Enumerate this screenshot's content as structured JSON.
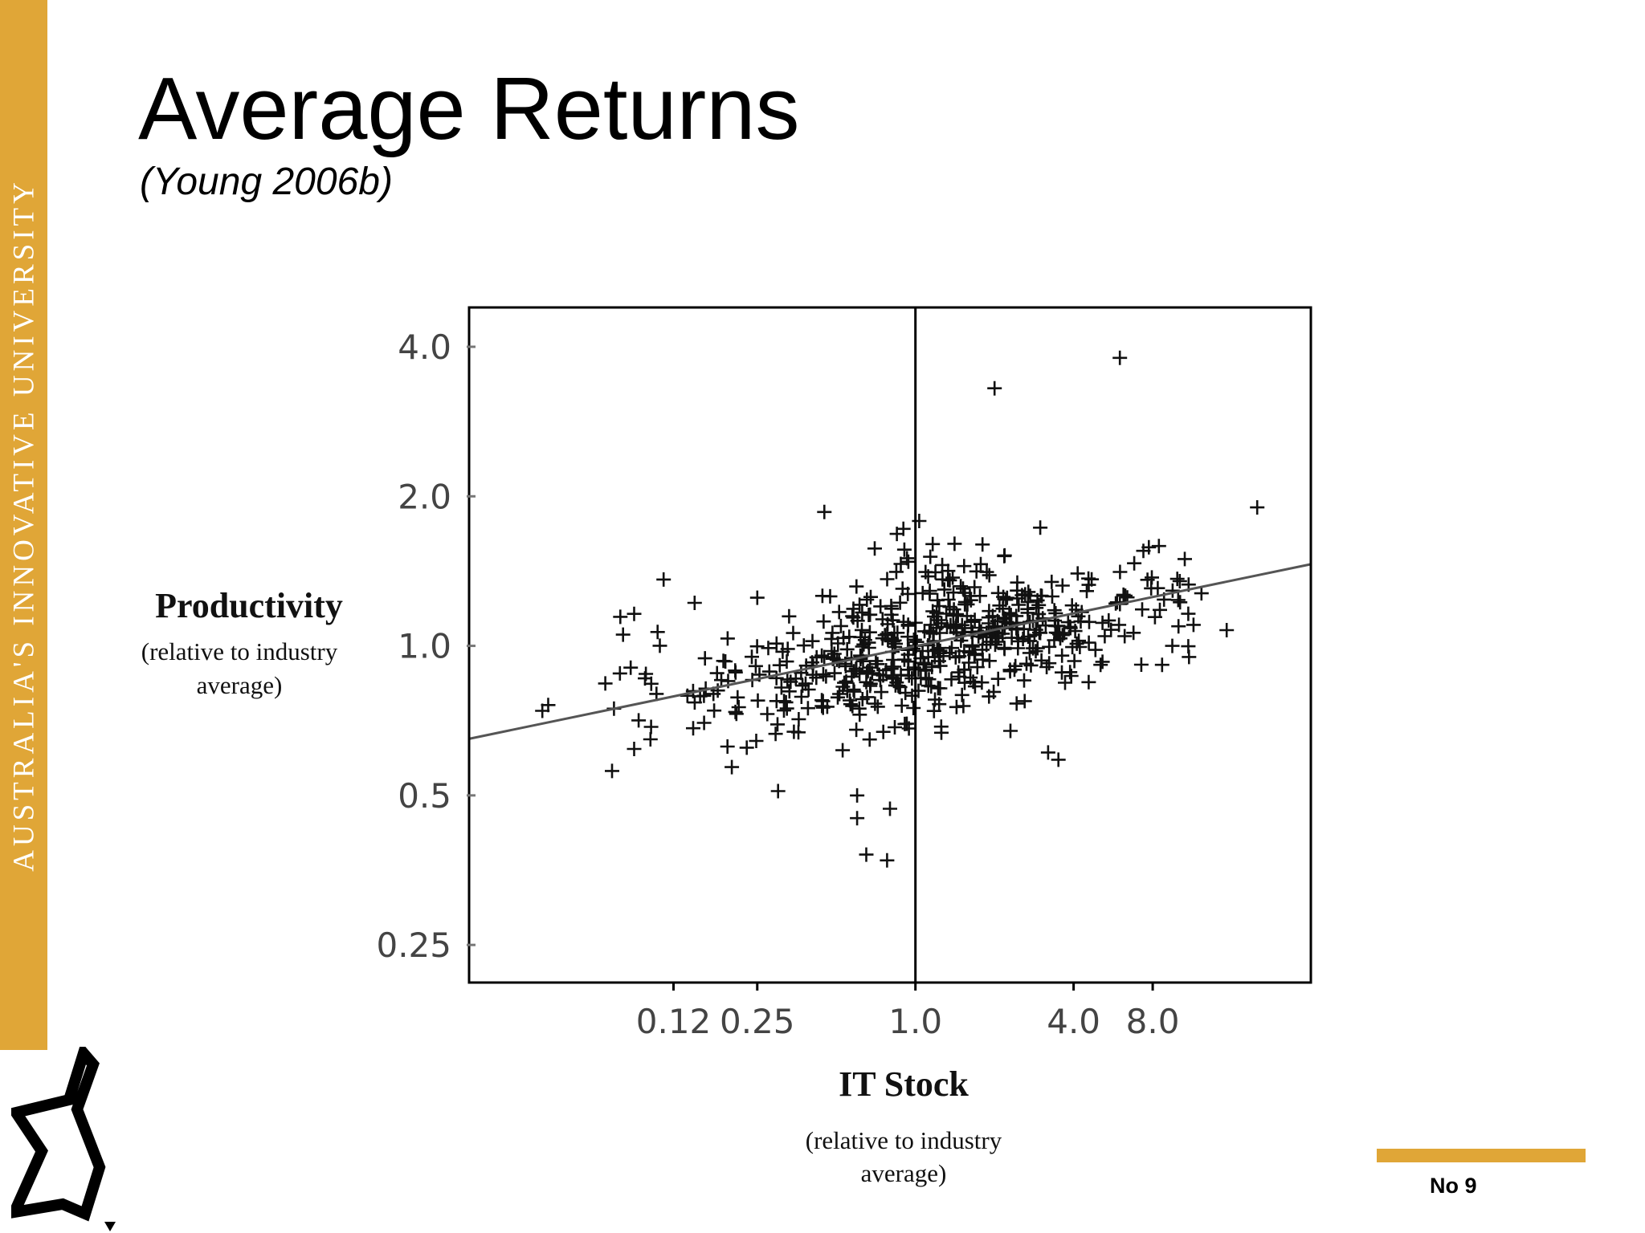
{
  "slide": {
    "title": "Average Returns",
    "subtitle": "(Young 2006b)",
    "side_text": "AUSTRALIA'S INNOVATIVE UNIVERSITY",
    "slide_number": "No 9",
    "logo_icon": "uts-star-logo-icon"
  },
  "colors": {
    "accent": "#E0A637",
    "ink": "#000000",
    "background": "#FFFFFF"
  },
  "chart_data": {
    "type": "scatter",
    "x_scale": "log2",
    "y_scale": "log2",
    "xlim": [
      0.02,
      32
    ],
    "ylim": [
      0.21,
      4.8
    ],
    "xticks": [
      0.12,
      0.25,
      1.0,
      4.0,
      8.0
    ],
    "xtick_labels": [
      "0.12",
      "0.25",
      "1.0",
      "4.0",
      "8.0"
    ],
    "yticks": [
      0.25,
      0.5,
      1.0,
      2.0,
      4.0
    ],
    "ytick_labels": [
      "0.25",
      "0.5",
      "1.0",
      "2.0",
      "4.0"
    ],
    "xlabel": "IT Stock",
    "xlabel_sub": [
      "(relative to industry",
      "average)"
    ],
    "ylabel": "Productivity",
    "ylabel_sub": [
      "(relative to industry",
      "average)"
    ],
    "reference_line_x": 1.0,
    "fit_line": {
      "x": [
        0.02,
        32
      ],
      "y": [
        0.65,
        1.46
      ]
    },
    "grid": false,
    "marker": "plus",
    "outliers": [
      [
        6.0,
        3.8
      ],
      [
        2.0,
        3.3
      ],
      [
        0.45,
        1.86
      ],
      [
        20.0,
        1.9
      ],
      [
        0.11,
        1.36
      ],
      [
        0.085,
        1.16
      ],
      [
        0.25,
        1.25
      ],
      [
        0.075,
        0.88
      ],
      [
        0.066,
        0.84
      ],
      [
        0.04,
        0.76
      ],
      [
        0.038,
        0.74
      ],
      [
        0.085,
        0.62
      ],
      [
        0.07,
        0.56
      ],
      [
        0.2,
        0.57
      ],
      [
        0.3,
        0.51
      ],
      [
        0.6,
        0.5
      ],
      [
        0.6,
        0.45
      ],
      [
        0.8,
        0.47
      ],
      [
        0.65,
        0.38
      ],
      [
        0.78,
        0.37
      ],
      [
        3.2,
        0.61
      ],
      [
        3.5,
        0.59
      ],
      [
        11.0,
        0.95
      ],
      [
        9.5,
        1.0
      ],
      [
        0.7,
        1.57
      ],
      [
        0.85,
        1.68
      ],
      [
        0.9,
        1.72
      ],
      [
        1.8,
        1.6
      ]
    ],
    "clusters": [
      {
        "cx": 0.9,
        "cy": 0.97,
        "sx": 1.6,
        "sy": 1.16,
        "n": 230
      },
      {
        "cx": 2.4,
        "cy": 1.08,
        "sx": 1.5,
        "sy": 1.12,
        "n": 150
      },
      {
        "cx": 0.3,
        "cy": 0.82,
        "sx": 1.8,
        "sy": 1.14,
        "n": 80
      },
      {
        "cx": 6.0,
        "cy": 1.22,
        "sx": 1.6,
        "sy": 1.13,
        "n": 50
      },
      {
        "cx": 1.3,
        "cy": 1.3,
        "sx": 1.5,
        "sy": 1.12,
        "n": 40
      },
      {
        "cx": 0.12,
        "cy": 0.85,
        "sx": 1.6,
        "sy": 1.12,
        "n": 20
      }
    ]
  }
}
